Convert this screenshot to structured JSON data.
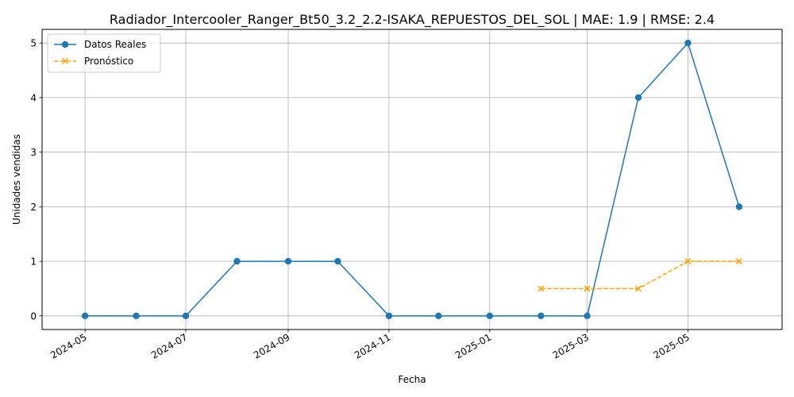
{
  "chart_data": {
    "type": "line",
    "title": "Radiador_Intercooler_Ranger_Bt50_3.2_2.2-ISAKA_REPUESTOS_DEL_SOL | MAE: 1.9 | RMSE: 2.4",
    "xlabel": "Fecha",
    "ylabel": "Unidades vendidas",
    "x_ticks": [
      "2024-05",
      "2024-07",
      "2024-09",
      "2024-11",
      "2025-01",
      "2025-03",
      "2025-05"
    ],
    "y_ticks": [
      0,
      1,
      2,
      3,
      4,
      5
    ],
    "xlim": [
      "2024-04-05",
      "2025-06-27"
    ],
    "ylim": [
      -0.25,
      5.25
    ],
    "grid": true,
    "legend_position": "top-left",
    "series": [
      {
        "name": "Datos Reales",
        "color": "#1f77b4",
        "marker": "circle",
        "linestyle": "solid",
        "x": [
          "2024-05-01",
          "2024-06-01",
          "2024-07-01",
          "2024-08-01",
          "2024-09-01",
          "2024-10-01",
          "2024-11-01",
          "2024-12-01",
          "2025-01-01",
          "2025-02-01",
          "2025-03-01",
          "2025-04-01",
          "2025-05-01",
          "2025-06-01"
        ],
        "values": [
          0,
          0,
          0,
          1,
          1,
          1,
          0,
          0,
          0,
          0,
          0,
          4,
          5,
          2
        ]
      },
      {
        "name": "Pronóstico",
        "color": "#ffa500",
        "marker": "x",
        "linestyle": "dashed",
        "x": [
          "2025-02-01",
          "2025-03-01",
          "2025-04-01",
          "2025-05-01",
          "2025-06-01"
        ],
        "values": [
          0.5,
          0.5,
          0.5,
          1,
          1
        ]
      }
    ]
  }
}
